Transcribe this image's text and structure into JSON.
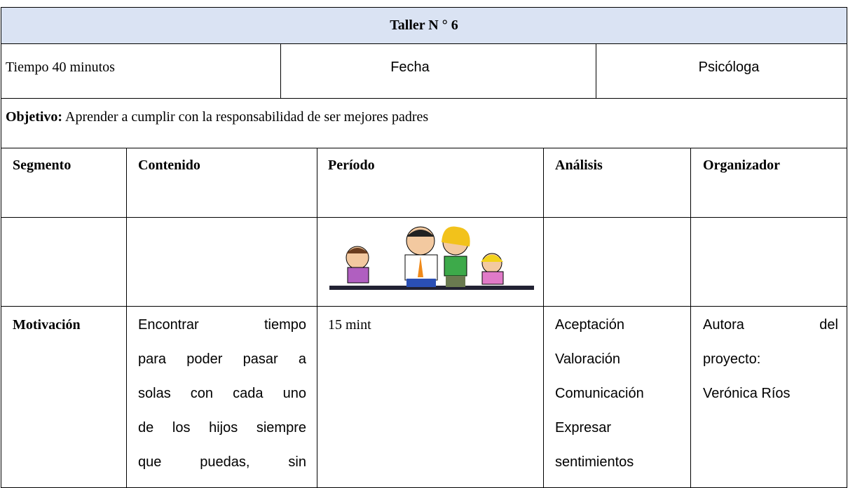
{
  "header": {
    "title": "Taller N ° 6"
  },
  "info": {
    "tiempo": "Tiempo 40 minutos",
    "fecha": "Fecha",
    "responsable": "Psicóloga"
  },
  "objective": {
    "label": "Objetivo:",
    "text": "Aprender a cumplir con la responsabilidad de ser mejores padres"
  },
  "table": {
    "headers": [
      "Segmento",
      "Contenido",
      "Período",
      "Análisis",
      "Organizador"
    ],
    "rows": [
      {
        "segmento": "Motivación",
        "contenido": [
          "Encontrar tiempo",
          "para poder pasar a",
          "solas con cada uno",
          "de los hijos siempre",
          "que puedas, sin"
        ],
        "periodo": "15 mint",
        "analisis": [
          "Aceptación",
          "Valoración",
          "Comunicación",
          "Expresar",
          "sentimientos"
        ],
        "organizador": [
          "Autora del",
          "proyecto:",
          "Verónica Ríos"
        ]
      }
    ]
  }
}
